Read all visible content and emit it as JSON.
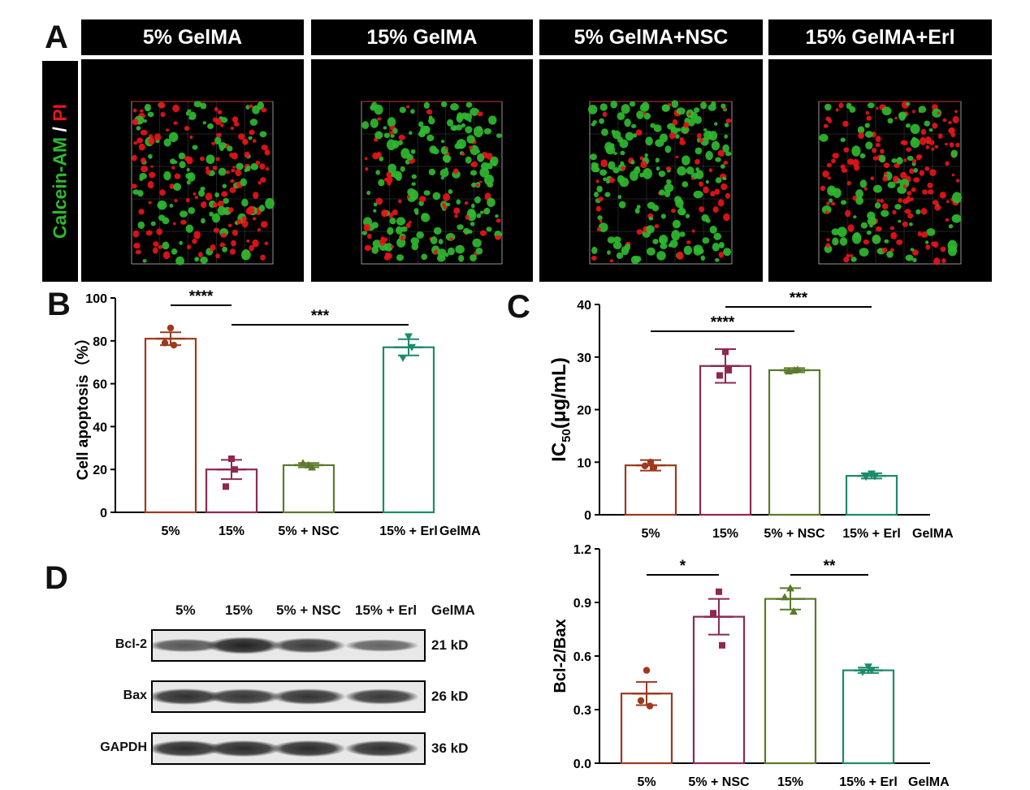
{
  "panels": {
    "a": "A",
    "b": "B",
    "c": "C",
    "d": "D"
  },
  "panel_a": {
    "headers": [
      "5% GelMA",
      "15% GelMA",
      "5% GelMA+NSC",
      "15% GelMA+Erl"
    ],
    "stain_label": {
      "part1": "Calcein-AM",
      "sep": " / ",
      "part2": "PI"
    },
    "stain_colors": {
      "live": "#2fb82f",
      "dead": "#e8141a"
    }
  },
  "chart_data": [
    {
      "id": "B",
      "type": "bar",
      "categories": [
        "5%",
        "15%",
        "5% + NSC",
        "15% + Erl"
      ],
      "category_suffix": "GelMA",
      "values": [
        81,
        20,
        22,
        77
      ],
      "sem": [
        3,
        4.5,
        1,
        3.8
      ],
      "points": [
        [
          86,
          79,
          78
        ],
        [
          25,
          12,
          20
        ],
        [
          22,
          23,
          21
        ],
        [
          82,
          72,
          77
        ]
      ],
      "ylabel": "Cell apoptosis（%）",
      "ylim": [
        0,
        100
      ],
      "yticks": [
        "0",
        "20",
        "40",
        "60",
        "80",
        "100"
      ],
      "colors": [
        "#9c3a1e",
        "#8e2852",
        "#5b7a2a",
        "#1c8a6c"
      ],
      "significance": [
        {
          "from": "5%",
          "to": "15%",
          "label": "****"
        },
        {
          "from": "15%",
          "to": "15% + Erl",
          "label": "***"
        }
      ]
    },
    {
      "id": "C",
      "type": "bar",
      "categories": [
        "5%",
        "15%",
        "5% + NSC",
        "15% + Erl"
      ],
      "category_suffix": "GelMA",
      "values": [
        9.4,
        28.3,
        27.5,
        7.4
      ],
      "sem": [
        1.0,
        3.2,
        0.4,
        0.5
      ],
      "points": [
        [
          10.0,
          9.3,
          9.0
        ],
        [
          31.0,
          26.5,
          27.5
        ],
        [
          27.5,
          27.3,
          27.6
        ],
        [
          7.8,
          7.2,
          7.3
        ]
      ],
      "ylabel": "IC50(μg/mL)",
      "ylabel_parts": {
        "main": "IC",
        "sub": "50",
        "rest": "(μg/mL)"
      },
      "ylim": [
        0,
        40
      ],
      "yticks": [
        "0",
        "10",
        "20",
        "30",
        "40"
      ],
      "colors": [
        "#9c3a1e",
        "#8e2852",
        "#5b7a2a",
        "#1c8a6c"
      ],
      "significance": [
        {
          "from": "5%",
          "to": "5% + NSC",
          "label": "****"
        },
        {
          "from": "15%",
          "to": "15% + Erl",
          "label": "***"
        }
      ]
    },
    {
      "id": "D-quant",
      "type": "bar",
      "categories": [
        "5%",
        "5% + NSC",
        "15%",
        "15% + Erl"
      ],
      "category_suffix": "GelMA",
      "values": [
        0.39,
        0.82,
        0.92,
        0.52
      ],
      "sem": [
        0.065,
        0.1,
        0.06,
        0.015
      ],
      "points": [
        [
          0.52,
          0.35,
          0.32
        ],
        [
          0.96,
          0.84,
          0.66
        ],
        [
          0.98,
          0.93,
          0.85
        ],
        [
          0.54,
          0.51,
          0.52
        ]
      ],
      "ylabel": "Bcl-2/Bax",
      "ylim": [
        0,
        1.2
      ],
      "yticks": [
        "0.0",
        "0.3",
        "0.6",
        "0.9",
        "1.2"
      ],
      "colors": [
        "#9c3a1e",
        "#8e2852",
        "#5b7a2a",
        "#1c8a6c"
      ],
      "significance": [
        {
          "from": "5%",
          "to": "5% + NSC",
          "label": "*"
        },
        {
          "from": "15%",
          "to": "15% + Erl",
          "label": "**"
        }
      ]
    }
  ],
  "western_blot": {
    "lanes": [
      "5%",
      "15%",
      "5% + NSC",
      "15% + Erl"
    ],
    "lanes_suffix": "GelMA",
    "rows": [
      {
        "protein": "Bcl-2",
        "size": "21 kD",
        "intensity": [
          0.55,
          0.95,
          0.75,
          0.45
        ]
      },
      {
        "protein": "Bax",
        "size": "26 kD",
        "intensity": [
          0.85,
          0.8,
          0.82,
          0.78
        ]
      },
      {
        "protein": "GAPDH",
        "size": "36 kD",
        "intensity": [
          0.88,
          0.88,
          0.88,
          0.85
        ]
      }
    ]
  }
}
